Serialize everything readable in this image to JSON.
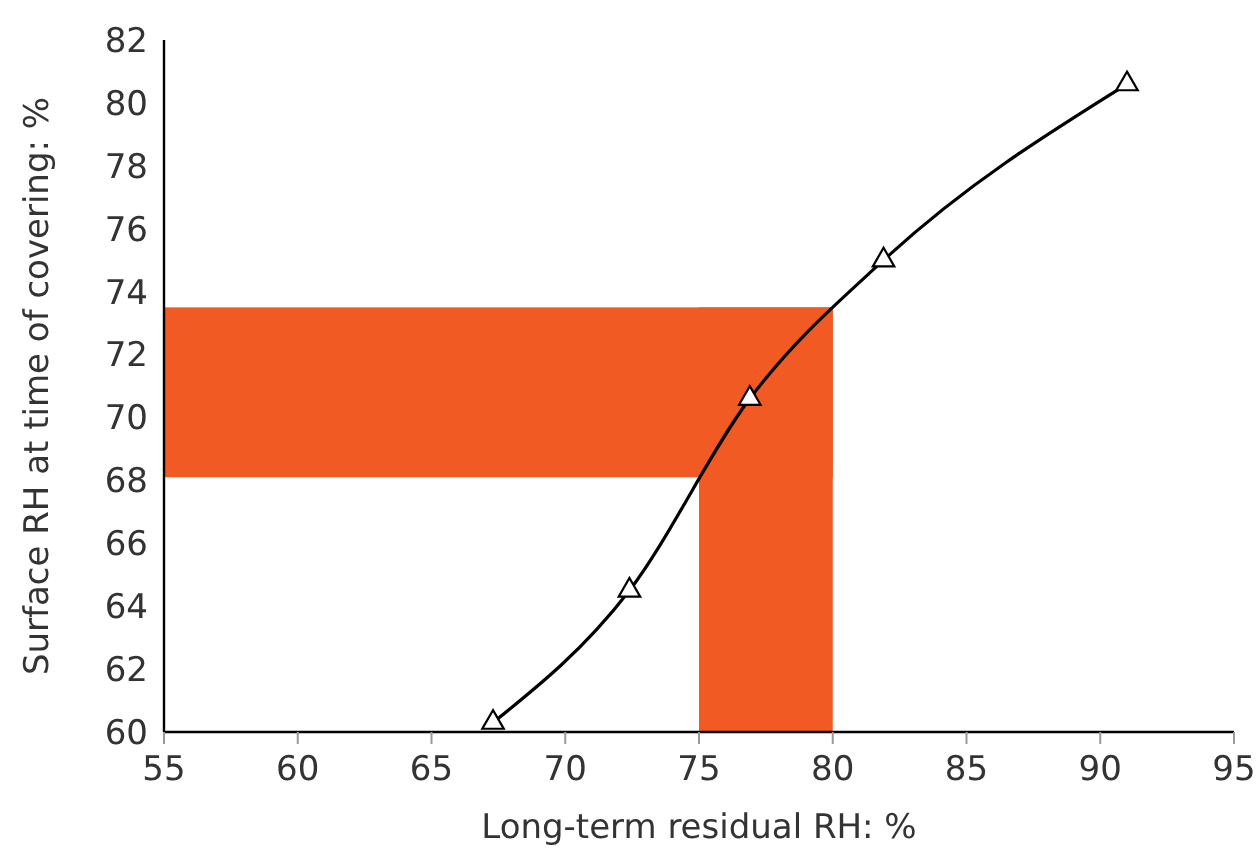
{
  "chart_data": {
    "type": "line",
    "xlabel": "Long-term residual RH: %",
    "ylabel": "Surface RH at time of covering: %",
    "x": [
      67.3,
      72.4,
      76.9,
      81.9,
      91
    ],
    "series": [
      {
        "color": "#000000",
        "values": [
          60.3,
          64.5,
          70.6,
          75.0,
          80.6
        ]
      }
    ],
    "marker": "triangle",
    "grid": false,
    "xlim": [
      55,
      95
    ],
    "xticks": [
      55,
      60,
      65,
      70,
      75,
      80,
      85,
      90,
      95
    ],
    "ylim": [
      60,
      82
    ],
    "yticks": [
      60,
      62,
      64,
      66,
      68,
      70,
      72,
      74,
      76,
      78,
      80,
      82
    ],
    "bands": [
      {
        "axis": "y",
        "from": 68.1,
        "to": 73.5,
        "color": "#f15a22"
      },
      {
        "axis": "x",
        "from": 75,
        "to": 80,
        "color": "#f15a22"
      }
    ]
  }
}
